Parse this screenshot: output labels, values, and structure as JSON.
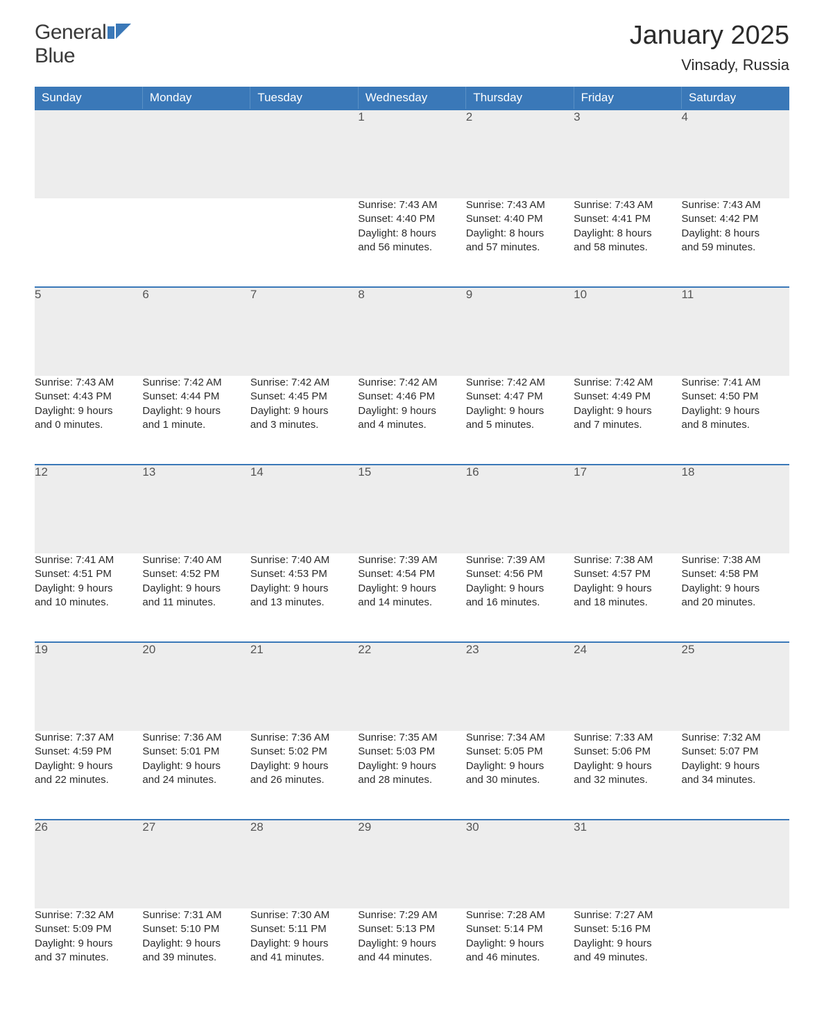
{
  "brand": {
    "word1": "General",
    "word2": "Blue"
  },
  "title": "January 2025",
  "location": "Vinsady, Russia",
  "colors": {
    "header_bg": "#3a78b8",
    "header_text": "#ffffff",
    "daynum_bg": "#ededed",
    "daynum_border_top": "#3a78b8",
    "body_text": "#2b2b2b",
    "page_bg": "#ffffff",
    "logo_blue": "#3a78b8"
  },
  "typography": {
    "title_fontsize": 38,
    "location_fontsize": 22,
    "dayheader_fontsize": 17,
    "daynum_fontsize": 17,
    "body_fontsize": 15
  },
  "day_headers": [
    "Sunday",
    "Monday",
    "Tuesday",
    "Wednesday",
    "Thursday",
    "Friday",
    "Saturday"
  ],
  "weeks": [
    [
      null,
      null,
      null,
      {
        "n": "1",
        "sunrise": "Sunrise: 7:43 AM",
        "sunset": "Sunset: 4:40 PM",
        "dl1": "Daylight: 8 hours",
        "dl2": "and 56 minutes."
      },
      {
        "n": "2",
        "sunrise": "Sunrise: 7:43 AM",
        "sunset": "Sunset: 4:40 PM",
        "dl1": "Daylight: 8 hours",
        "dl2": "and 57 minutes."
      },
      {
        "n": "3",
        "sunrise": "Sunrise: 7:43 AM",
        "sunset": "Sunset: 4:41 PM",
        "dl1": "Daylight: 8 hours",
        "dl2": "and 58 minutes."
      },
      {
        "n": "4",
        "sunrise": "Sunrise: 7:43 AM",
        "sunset": "Sunset: 4:42 PM",
        "dl1": "Daylight: 8 hours",
        "dl2": "and 59 minutes."
      }
    ],
    [
      {
        "n": "5",
        "sunrise": "Sunrise: 7:43 AM",
        "sunset": "Sunset: 4:43 PM",
        "dl1": "Daylight: 9 hours",
        "dl2": "and 0 minutes."
      },
      {
        "n": "6",
        "sunrise": "Sunrise: 7:42 AM",
        "sunset": "Sunset: 4:44 PM",
        "dl1": "Daylight: 9 hours",
        "dl2": "and 1 minute."
      },
      {
        "n": "7",
        "sunrise": "Sunrise: 7:42 AM",
        "sunset": "Sunset: 4:45 PM",
        "dl1": "Daylight: 9 hours",
        "dl2": "and 3 minutes."
      },
      {
        "n": "8",
        "sunrise": "Sunrise: 7:42 AM",
        "sunset": "Sunset: 4:46 PM",
        "dl1": "Daylight: 9 hours",
        "dl2": "and 4 minutes."
      },
      {
        "n": "9",
        "sunrise": "Sunrise: 7:42 AM",
        "sunset": "Sunset: 4:47 PM",
        "dl1": "Daylight: 9 hours",
        "dl2": "and 5 minutes."
      },
      {
        "n": "10",
        "sunrise": "Sunrise: 7:42 AM",
        "sunset": "Sunset: 4:49 PM",
        "dl1": "Daylight: 9 hours",
        "dl2": "and 7 minutes."
      },
      {
        "n": "11",
        "sunrise": "Sunrise: 7:41 AM",
        "sunset": "Sunset: 4:50 PM",
        "dl1": "Daylight: 9 hours",
        "dl2": "and 8 minutes."
      }
    ],
    [
      {
        "n": "12",
        "sunrise": "Sunrise: 7:41 AM",
        "sunset": "Sunset: 4:51 PM",
        "dl1": "Daylight: 9 hours",
        "dl2": "and 10 minutes."
      },
      {
        "n": "13",
        "sunrise": "Sunrise: 7:40 AM",
        "sunset": "Sunset: 4:52 PM",
        "dl1": "Daylight: 9 hours",
        "dl2": "and 11 minutes."
      },
      {
        "n": "14",
        "sunrise": "Sunrise: 7:40 AM",
        "sunset": "Sunset: 4:53 PM",
        "dl1": "Daylight: 9 hours",
        "dl2": "and 13 minutes."
      },
      {
        "n": "15",
        "sunrise": "Sunrise: 7:39 AM",
        "sunset": "Sunset: 4:54 PM",
        "dl1": "Daylight: 9 hours",
        "dl2": "and 14 minutes."
      },
      {
        "n": "16",
        "sunrise": "Sunrise: 7:39 AM",
        "sunset": "Sunset: 4:56 PM",
        "dl1": "Daylight: 9 hours",
        "dl2": "and 16 minutes."
      },
      {
        "n": "17",
        "sunrise": "Sunrise: 7:38 AM",
        "sunset": "Sunset: 4:57 PM",
        "dl1": "Daylight: 9 hours",
        "dl2": "and 18 minutes."
      },
      {
        "n": "18",
        "sunrise": "Sunrise: 7:38 AM",
        "sunset": "Sunset: 4:58 PM",
        "dl1": "Daylight: 9 hours",
        "dl2": "and 20 minutes."
      }
    ],
    [
      {
        "n": "19",
        "sunrise": "Sunrise: 7:37 AM",
        "sunset": "Sunset: 4:59 PM",
        "dl1": "Daylight: 9 hours",
        "dl2": "and 22 minutes."
      },
      {
        "n": "20",
        "sunrise": "Sunrise: 7:36 AM",
        "sunset": "Sunset: 5:01 PM",
        "dl1": "Daylight: 9 hours",
        "dl2": "and 24 minutes."
      },
      {
        "n": "21",
        "sunrise": "Sunrise: 7:36 AM",
        "sunset": "Sunset: 5:02 PM",
        "dl1": "Daylight: 9 hours",
        "dl2": "and 26 minutes."
      },
      {
        "n": "22",
        "sunrise": "Sunrise: 7:35 AM",
        "sunset": "Sunset: 5:03 PM",
        "dl1": "Daylight: 9 hours",
        "dl2": "and 28 minutes."
      },
      {
        "n": "23",
        "sunrise": "Sunrise: 7:34 AM",
        "sunset": "Sunset: 5:05 PM",
        "dl1": "Daylight: 9 hours",
        "dl2": "and 30 minutes."
      },
      {
        "n": "24",
        "sunrise": "Sunrise: 7:33 AM",
        "sunset": "Sunset: 5:06 PM",
        "dl1": "Daylight: 9 hours",
        "dl2": "and 32 minutes."
      },
      {
        "n": "25",
        "sunrise": "Sunrise: 7:32 AM",
        "sunset": "Sunset: 5:07 PM",
        "dl1": "Daylight: 9 hours",
        "dl2": "and 34 minutes."
      }
    ],
    [
      {
        "n": "26",
        "sunrise": "Sunrise: 7:32 AM",
        "sunset": "Sunset: 5:09 PM",
        "dl1": "Daylight: 9 hours",
        "dl2": "and 37 minutes."
      },
      {
        "n": "27",
        "sunrise": "Sunrise: 7:31 AM",
        "sunset": "Sunset: 5:10 PM",
        "dl1": "Daylight: 9 hours",
        "dl2": "and 39 minutes."
      },
      {
        "n": "28",
        "sunrise": "Sunrise: 7:30 AM",
        "sunset": "Sunset: 5:11 PM",
        "dl1": "Daylight: 9 hours",
        "dl2": "and 41 minutes."
      },
      {
        "n": "29",
        "sunrise": "Sunrise: 7:29 AM",
        "sunset": "Sunset: 5:13 PM",
        "dl1": "Daylight: 9 hours",
        "dl2": "and 44 minutes."
      },
      {
        "n": "30",
        "sunrise": "Sunrise: 7:28 AM",
        "sunset": "Sunset: 5:14 PM",
        "dl1": "Daylight: 9 hours",
        "dl2": "and 46 minutes."
      },
      {
        "n": "31",
        "sunrise": "Sunrise: 7:27 AM",
        "sunset": "Sunset: 5:16 PM",
        "dl1": "Daylight: 9 hours",
        "dl2": "and 49 minutes."
      },
      null
    ]
  ]
}
